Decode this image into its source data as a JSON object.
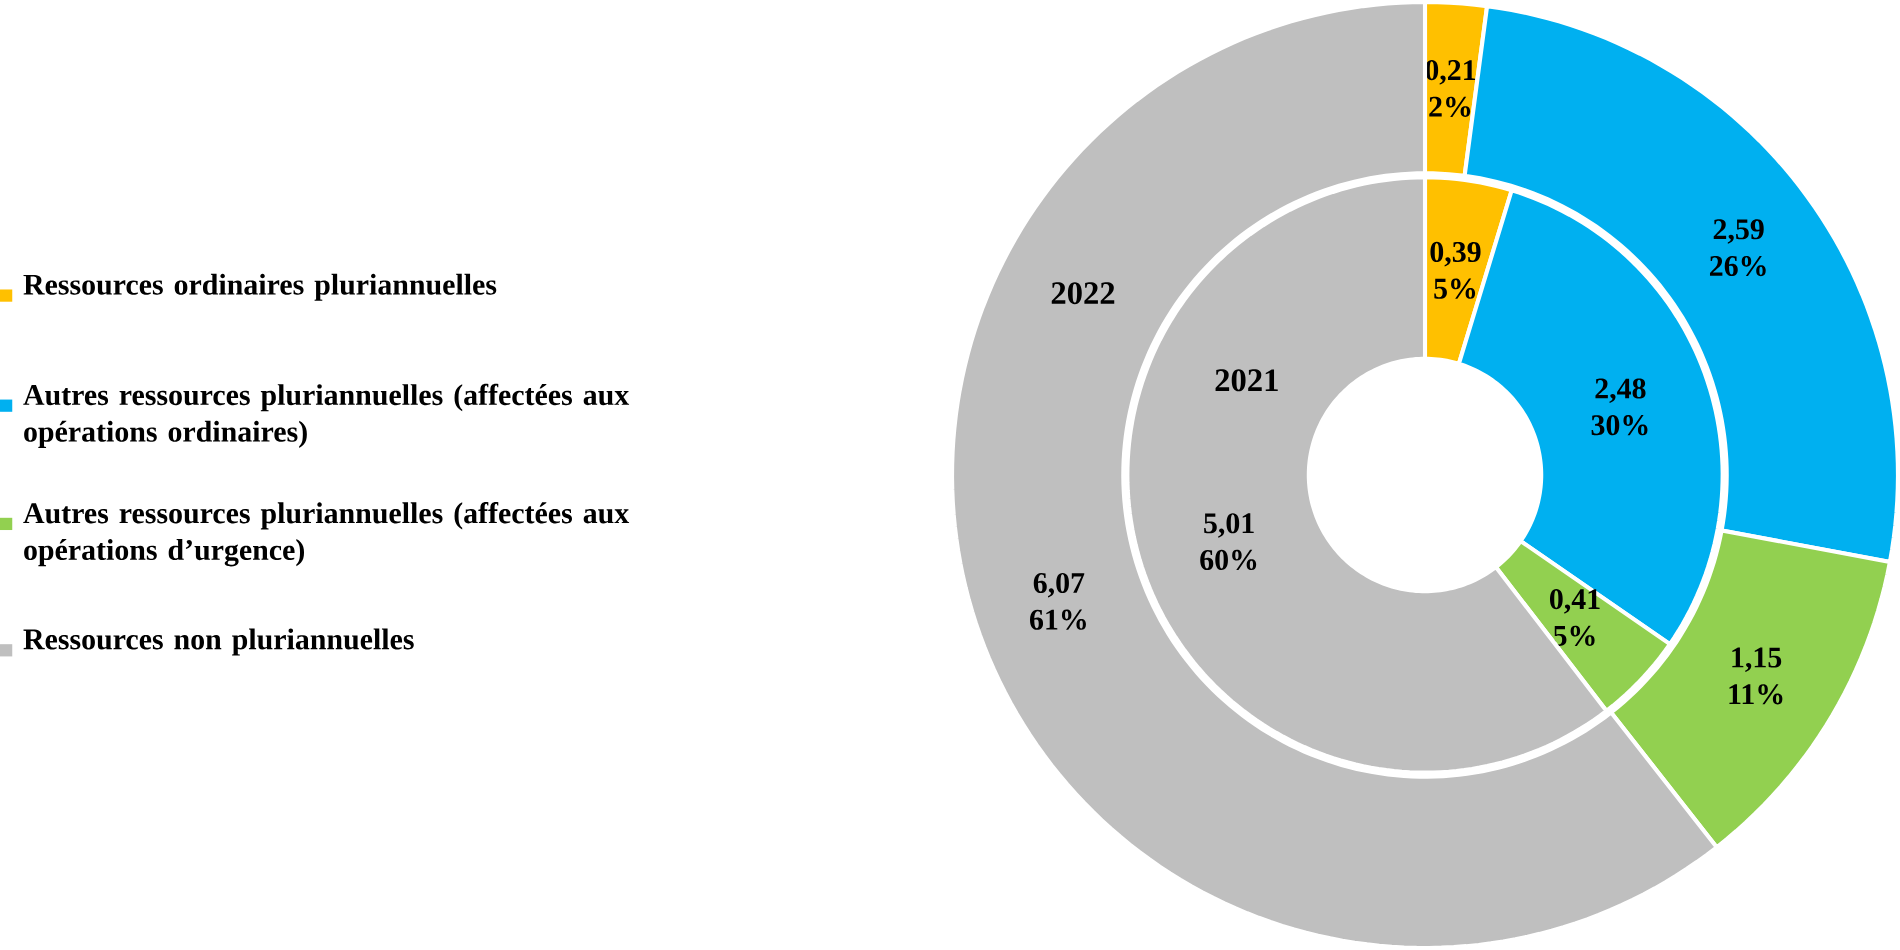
{
  "chart_data": {
    "type": "donut",
    "categories": [
      "Ressources ordinaires pluriannuelles",
      "Autres ressources pluriannuelles (affectées aux opérations ordinaires)",
      "Autres ressources pluriannuelles (affectées aux opérations d’urgence)",
      "Ressources non pluriannuelles"
    ],
    "colors": [
      "#ffc000",
      "#00b0f0",
      "#92d050",
      "#bfbfbf"
    ],
    "series": [
      {
        "name": "2021",
        "values": [
          0.39,
          2.48,
          0.41,
          5.01
        ],
        "value_labels": [
          "0,39 5%",
          "2,48 30%",
          "0,41 5%",
          "5,01 60%"
        ]
      },
      {
        "name": "2022",
        "values": [
          0.21,
          2.59,
          1.15,
          6.07
        ],
        "value_labels": [
          "0,21 2%",
          "2,59 26%",
          "1,15 11%",
          "6,07 61%"
        ]
      }
    ],
    "legend": "left"
  }
}
